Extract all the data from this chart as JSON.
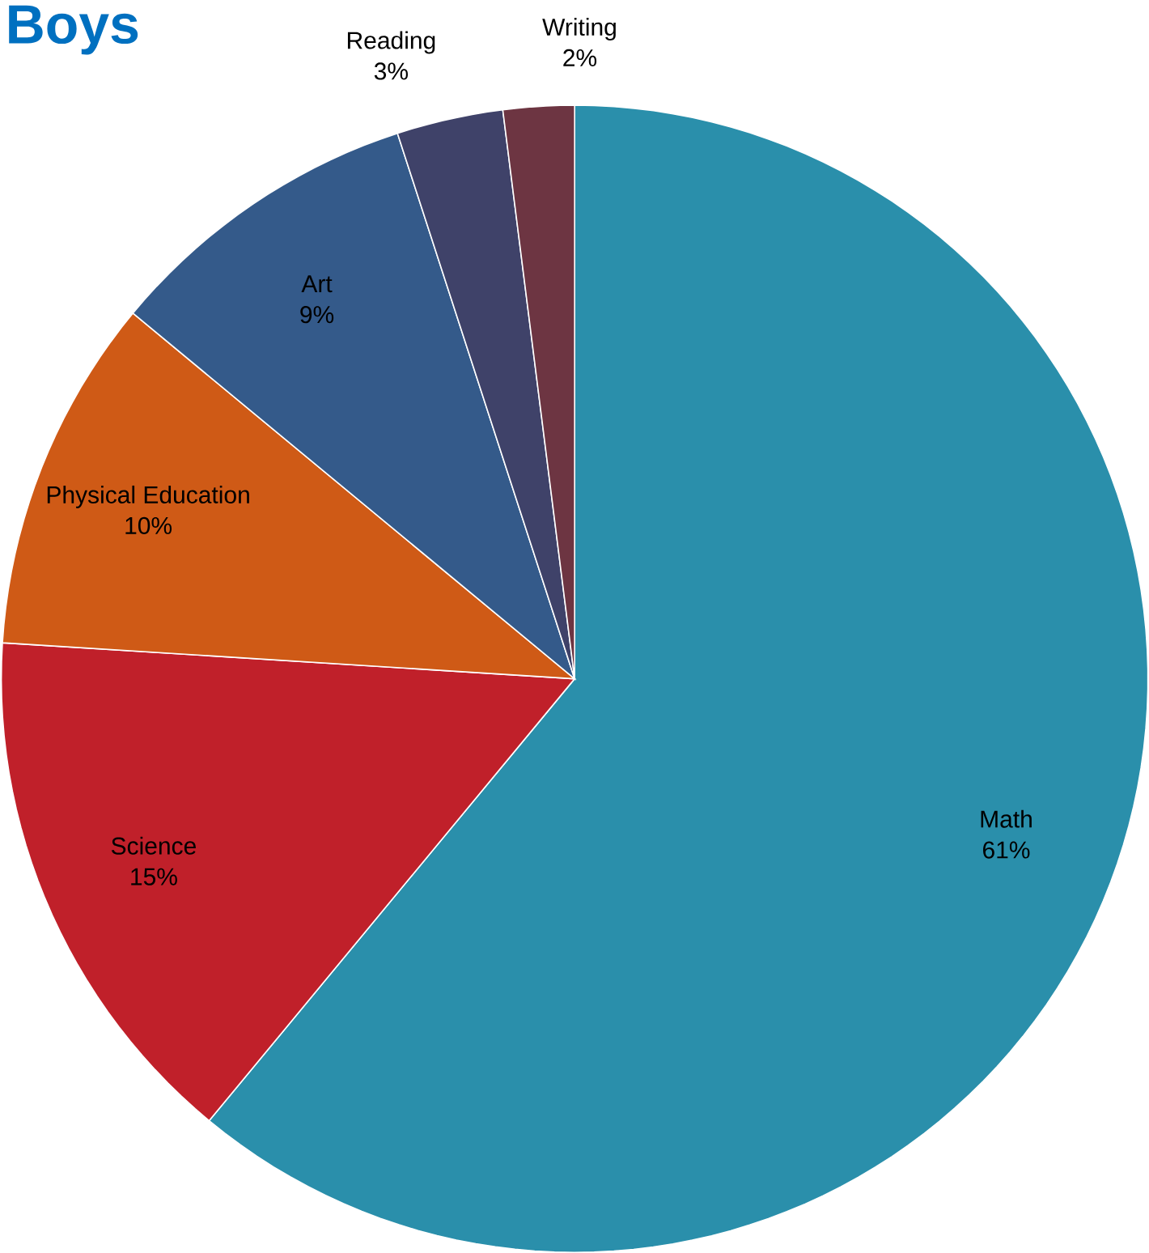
{
  "chart_data": {
    "type": "pie",
    "title": "Boys",
    "categories": [
      "Math",
      "Science",
      "Physical Education",
      "Art",
      "Reading",
      "Writing"
    ],
    "values": [
      61,
      15,
      10,
      9,
      3,
      2
    ],
    "colors": [
      "#2a8fab",
      "#c0202a",
      "#cf5a16",
      "#345a8a",
      "#3f4269",
      "#6d3542"
    ],
    "value_labels": [
      "61%",
      "15%",
      "10%",
      "9%",
      "3%",
      "2%"
    ]
  }
}
